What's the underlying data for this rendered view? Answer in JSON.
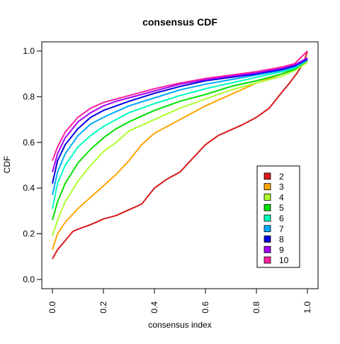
{
  "chart_data": {
    "type": "line",
    "title": "consensus CDF",
    "xlabel": "consensus index",
    "ylabel": "CDF",
    "xlim": [
      0,
      1
    ],
    "ylim": [
      0,
      1
    ],
    "x_ticks": [
      "0.0",
      "0.2",
      "0.4",
      "0.6",
      "0.8",
      "1.0"
    ],
    "y_ticks": [
      "0.0",
      "0.2",
      "0.4",
      "0.6",
      "0.8",
      "1.0"
    ],
    "grid": false,
    "legend_position": "bottom-right",
    "series": [
      {
        "name": "2",
        "color": "#D7191C",
        "x": [
          0.0,
          0.02,
          0.05,
          0.08,
          0.1,
          0.15,
          0.2,
          0.25,
          0.3,
          0.35,
          0.4,
          0.45,
          0.5,
          0.55,
          0.6,
          0.65,
          0.7,
          0.75,
          0.8,
          0.85,
          0.9,
          0.93,
          0.96,
          0.98,
          0.99,
          1.0
        ],
        "y": [
          0.09,
          0.13,
          0.17,
          0.21,
          0.22,
          0.24,
          0.265,
          0.28,
          0.305,
          0.33,
          0.4,
          0.44,
          0.47,
          0.53,
          0.59,
          0.63,
          0.655,
          0.68,
          0.71,
          0.75,
          0.82,
          0.86,
          0.905,
          0.94,
          0.965,
          1.0
        ]
      },
      {
        "name": "3",
        "color": "#FFA500",
        "x": [
          0.0,
          0.02,
          0.05,
          0.1,
          0.15,
          0.2,
          0.25,
          0.3,
          0.35,
          0.4,
          0.5,
          0.6,
          0.7,
          0.8,
          0.9,
          0.95,
          1.0
        ],
        "y": [
          0.13,
          0.2,
          0.25,
          0.31,
          0.36,
          0.41,
          0.46,
          0.52,
          0.59,
          0.64,
          0.7,
          0.76,
          0.81,
          0.86,
          0.9,
          0.925,
          0.955
        ]
      },
      {
        "name": "4",
        "color": "#ADFF2F",
        "x": [
          0.0,
          0.02,
          0.05,
          0.1,
          0.15,
          0.2,
          0.25,
          0.3,
          0.4,
          0.5,
          0.6,
          0.7,
          0.8,
          0.9,
          0.95,
          1.0
        ],
        "y": [
          0.19,
          0.26,
          0.34,
          0.43,
          0.5,
          0.56,
          0.6,
          0.65,
          0.7,
          0.75,
          0.79,
          0.83,
          0.86,
          0.89,
          0.915,
          0.95
        ]
      },
      {
        "name": "5",
        "color": "#00E000",
        "x": [
          0.0,
          0.02,
          0.05,
          0.1,
          0.15,
          0.2,
          0.25,
          0.3,
          0.4,
          0.5,
          0.6,
          0.7,
          0.8,
          0.9,
          0.95,
          1.0
        ],
        "y": [
          0.26,
          0.34,
          0.42,
          0.51,
          0.57,
          0.62,
          0.66,
          0.69,
          0.74,
          0.78,
          0.81,
          0.845,
          0.87,
          0.9,
          0.92,
          0.96
        ]
      },
      {
        "name": "6",
        "color": "#00FFC0",
        "x": [
          0.0,
          0.02,
          0.05,
          0.1,
          0.15,
          0.2,
          0.25,
          0.3,
          0.4,
          0.5,
          0.6,
          0.7,
          0.8,
          0.9,
          0.95,
          1.0
        ],
        "y": [
          0.31,
          0.42,
          0.5,
          0.58,
          0.63,
          0.67,
          0.7,
          0.73,
          0.77,
          0.805,
          0.835,
          0.86,
          0.885,
          0.91,
          0.925,
          0.96
        ]
      },
      {
        "name": "7",
        "color": "#00AAFF",
        "x": [
          0.0,
          0.02,
          0.05,
          0.1,
          0.15,
          0.2,
          0.25,
          0.3,
          0.4,
          0.5,
          0.6,
          0.7,
          0.8,
          0.9,
          0.95,
          1.0
        ],
        "y": [
          0.37,
          0.47,
          0.55,
          0.63,
          0.68,
          0.71,
          0.735,
          0.76,
          0.795,
          0.83,
          0.855,
          0.875,
          0.895,
          0.915,
          0.93,
          0.96
        ]
      },
      {
        "name": "8",
        "color": "#0000E0",
        "x": [
          0.0,
          0.02,
          0.05,
          0.1,
          0.15,
          0.2,
          0.25,
          0.3,
          0.4,
          0.5,
          0.6,
          0.7,
          0.8,
          0.9,
          0.95,
          1.0
        ],
        "y": [
          0.42,
          0.52,
          0.59,
          0.66,
          0.71,
          0.74,
          0.76,
          0.78,
          0.815,
          0.845,
          0.87,
          0.885,
          0.9,
          0.92,
          0.935,
          0.965
        ]
      },
      {
        "name": "9",
        "color": "#A000FF",
        "x": [
          0.0,
          0.02,
          0.05,
          0.1,
          0.15,
          0.2,
          0.25,
          0.3,
          0.4,
          0.5,
          0.6,
          0.7,
          0.8,
          0.9,
          0.95,
          1.0
        ],
        "y": [
          0.47,
          0.55,
          0.62,
          0.69,
          0.73,
          0.76,
          0.78,
          0.795,
          0.825,
          0.855,
          0.875,
          0.89,
          0.905,
          0.925,
          0.94,
          0.97
        ]
      },
      {
        "name": "10",
        "color": "#FF1FA0",
        "x": [
          0.0,
          0.02,
          0.05,
          0.1,
          0.15,
          0.2,
          0.25,
          0.3,
          0.4,
          0.5,
          0.6,
          0.7,
          0.8,
          0.9,
          0.95,
          1.0
        ],
        "y": [
          0.52,
          0.58,
          0.645,
          0.71,
          0.75,
          0.775,
          0.79,
          0.805,
          0.835,
          0.86,
          0.88,
          0.895,
          0.91,
          0.93,
          0.945,
          1.0
        ]
      }
    ]
  }
}
